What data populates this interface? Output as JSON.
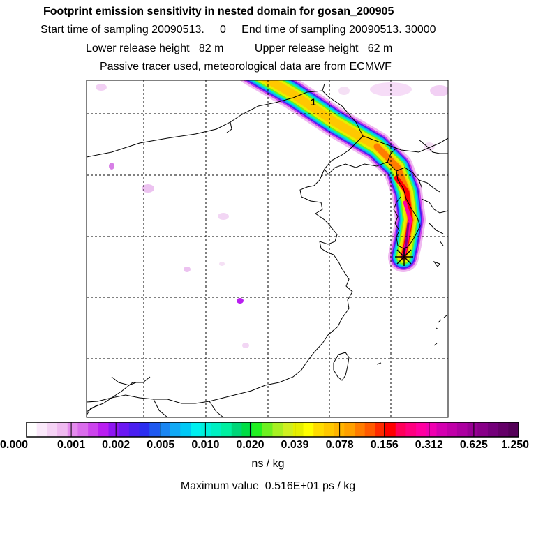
{
  "header": {
    "title": "Footprint emission sensitivity in nested domain for gosan_200905",
    "line2": "Start time of sampling 20090513.     0     End time of sampling 20090513. 30000",
    "line3": "Lower release height   82 m          Upper release height   62 m",
    "line4": "Passive tracer used, meteorological data are from ECMWF"
  },
  "map": {
    "plume_label": "1",
    "release_marker": "asterisk-icon"
  },
  "colorbar": {
    "ticks": [
      "0.000",
      "0.001",
      "0.002",
      "0.005",
      "0.010",
      "0.020",
      "0.039",
      "0.078",
      "0.156",
      "0.312",
      "0.625",
      "1.250"
    ],
    "colors": [
      "#ffffff",
      "#fbe9fb",
      "#f5d2f5",
      "#efb9f0",
      "#e48aed",
      "#da6ceb",
      "#cc44ec",
      "#b91ef0",
      "#8e14f2",
      "#6b18f2",
      "#4a1ff0",
      "#2a2df0",
      "#1d58f0",
      "#1a86f2",
      "#11a9f5",
      "#00c8f5",
      "#00f0f0",
      "#00f0dc",
      "#00f0c2",
      "#00f0a0",
      "#00d678",
      "#00de45",
      "#22f020",
      "#6ef020",
      "#a8f022",
      "#d0f020",
      "#e6f000",
      "#ffff00",
      "#ffdc00",
      "#ffc800",
      "#ffb400",
      "#ffa000",
      "#ff7c00",
      "#ff5a00",
      "#ff2a00",
      "#ff0000",
      "#ff005a",
      "#ff0080",
      "#ff00a0",
      "#f000b0",
      "#d400b0",
      "#c000a8",
      "#ac00a0",
      "#980094",
      "#880088",
      "#74007a",
      "#640068",
      "#540058"
    ],
    "units": "ns / kg"
  },
  "footer": {
    "max_value": "Maximum value  0.516E+01 ps / kg"
  },
  "chart_data": {
    "type": "heatmap",
    "title": "Footprint emission sensitivity in nested domain for gosan_200905",
    "legend_units": "ns / kg",
    "legend_bins": [
      0.0,
      0.001,
      0.002,
      0.005,
      0.01,
      0.02,
      0.039,
      0.078,
      0.156,
      0.312,
      0.625,
      1.25
    ],
    "maximum_value": "0.516E+01 ps / kg",
    "grid": true,
    "description_of_marks": "single plume extending from the release point toward the northwest"
  }
}
